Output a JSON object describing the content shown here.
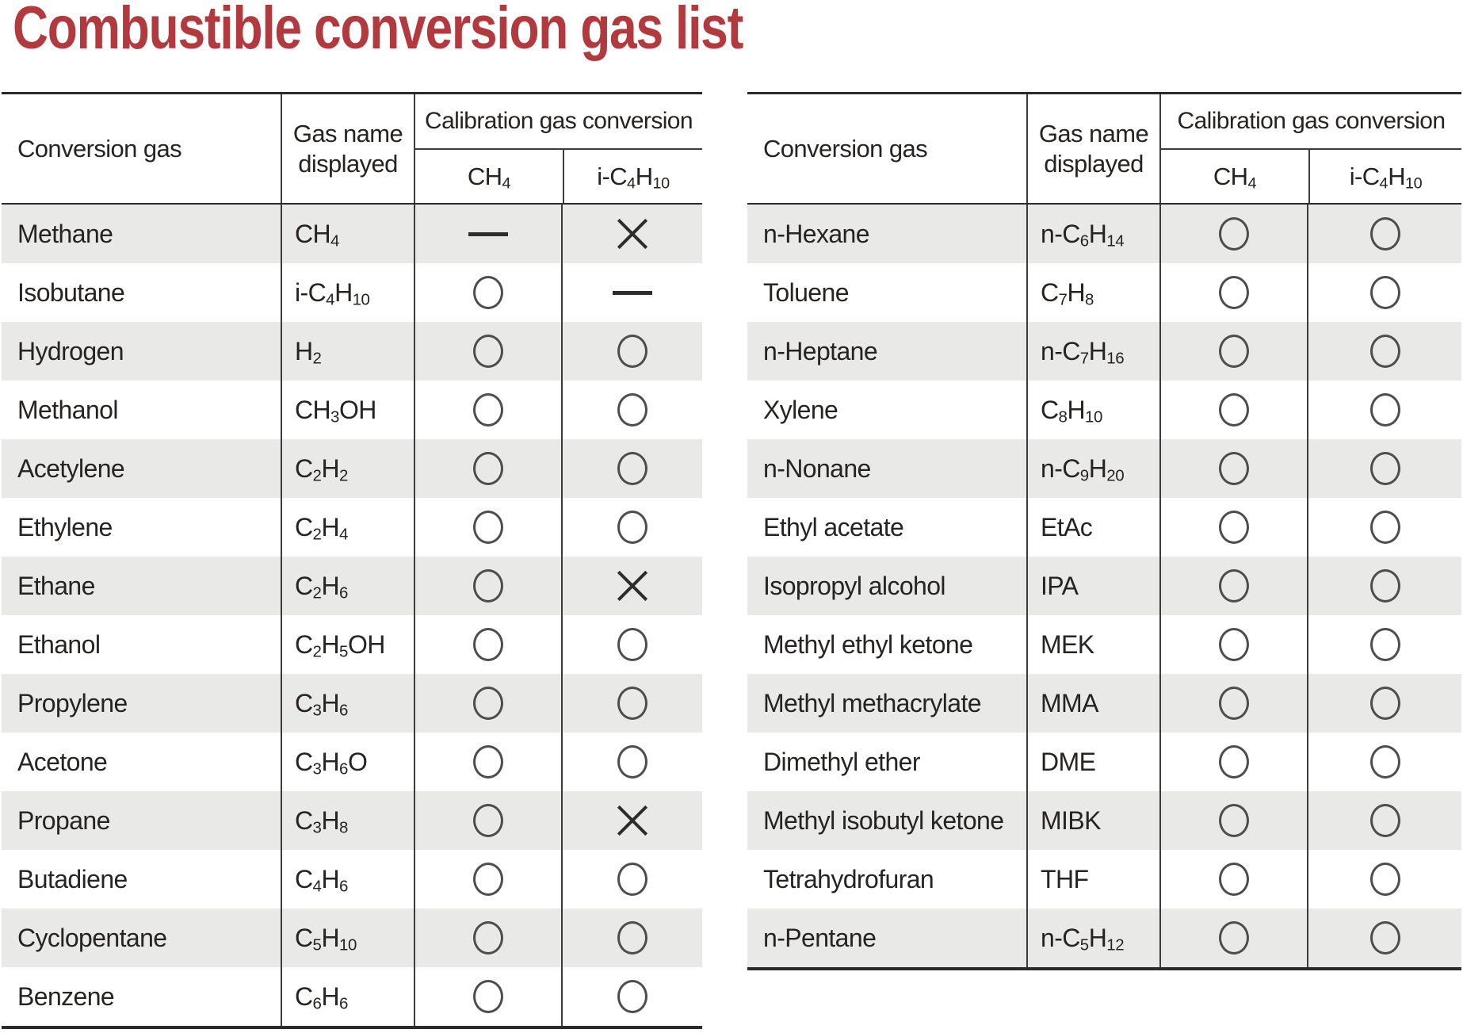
{
  "title": "Combustible conversion gas list",
  "colors": {
    "title_red": "#b23a3e",
    "row_stripe": "#e9e9e8",
    "table_line": "#2b2b2b",
    "symbol_ink": "#2d2d2d",
    "text_ink": "#262321"
  },
  "tables": [
    {
      "name": "left",
      "headers": {
        "conversion_gas": "Conversion gas",
        "gas_name_displayed": "Gas name displayed",
        "calibration": "Calibration gas conversion",
        "ch4": "CH4",
        "ic4h10": "i-C4H10"
      },
      "rows": [
        {
          "gas": "Methane",
          "display": "CH4",
          "ch4": "—",
          "ic4h10": "✕"
        },
        {
          "gas": "Isobutane",
          "display": "i-C4H10",
          "ch4": "○",
          "ic4h10": "—"
        },
        {
          "gas": "Hydrogen",
          "display": "H2",
          "ch4": "○",
          "ic4h10": "○"
        },
        {
          "gas": "Methanol",
          "display": "CH3OH",
          "ch4": "○",
          "ic4h10": "○"
        },
        {
          "gas": "Acetylene",
          "display": "C2H2",
          "ch4": "○",
          "ic4h10": "○"
        },
        {
          "gas": "Ethylene",
          "display": "C2H4",
          "ch4": "○",
          "ic4h10": "○"
        },
        {
          "gas": "Ethane",
          "display": "C2H6",
          "ch4": "○",
          "ic4h10": "✕"
        },
        {
          "gas": "Ethanol",
          "display": "C2H5OH",
          "ch4": "○",
          "ic4h10": "○"
        },
        {
          "gas": "Propylene",
          "display": "C3H6",
          "ch4": "○",
          "ic4h10": "○"
        },
        {
          "gas": "Acetone",
          "display": "C3H6O",
          "ch4": "○",
          "ic4h10": "○"
        },
        {
          "gas": "Propane",
          "display": "C3H8",
          "ch4": "○",
          "ic4h10": "✕"
        },
        {
          "gas": "Butadiene",
          "display": "C4H6",
          "ch4": "○",
          "ic4h10": "○"
        },
        {
          "gas": "Cyclopentane",
          "display": "C5H10",
          "ch4": "○",
          "ic4h10": "○"
        },
        {
          "gas": "Benzene",
          "display": "C6H6",
          "ch4": "○",
          "ic4h10": "○"
        }
      ]
    },
    {
      "name": "right",
      "headers": {
        "conversion_gas": "Conversion gas",
        "gas_name_displayed": "Gas name displayed",
        "calibration": "Calibration gas conversion",
        "ch4": "CH4",
        "ic4h10": "i-C4H10"
      },
      "rows": [
        {
          "gas": "n-Hexane",
          "display": "n-C6H14",
          "ch4": "○",
          "ic4h10": "○"
        },
        {
          "gas": "Toluene",
          "display": "C7H8",
          "ch4": "○",
          "ic4h10": "○"
        },
        {
          "gas": "n-Heptane",
          "display": "n-C7H16",
          "ch4": "○",
          "ic4h10": "○"
        },
        {
          "gas": "Xylene",
          "display": "C8H10",
          "ch4": "○",
          "ic4h10": "○"
        },
        {
          "gas": "n-Nonane",
          "display": "n-C9H20",
          "ch4": "○",
          "ic4h10": "○"
        },
        {
          "gas": "Ethyl acetate",
          "display": "EtAc",
          "ch4": "○",
          "ic4h10": "○"
        },
        {
          "gas": "Isopropyl alcohol",
          "display": "IPA",
          "ch4": "○",
          "ic4h10": "○"
        },
        {
          "gas": "Methyl ethyl ketone",
          "display": "MEK",
          "ch4": "○",
          "ic4h10": "○"
        },
        {
          "gas": "Methyl methacrylate",
          "display": "MMA",
          "ch4": "○",
          "ic4h10": "○"
        },
        {
          "gas": "Dimethyl ether",
          "display": "DME",
          "ch4": "○",
          "ic4h10": "○"
        },
        {
          "gas": "Methyl isobutyl ketone",
          "display": "MIBK",
          "ch4": "○",
          "ic4h10": "○"
        },
        {
          "gas": "Tetrahydrofuran",
          "display": "THF",
          "ch4": "○",
          "ic4h10": "○"
        },
        {
          "gas": "n-Pentane",
          "display": "n-C5H12",
          "ch4": "○",
          "ic4h10": "○"
        }
      ]
    }
  ]
}
